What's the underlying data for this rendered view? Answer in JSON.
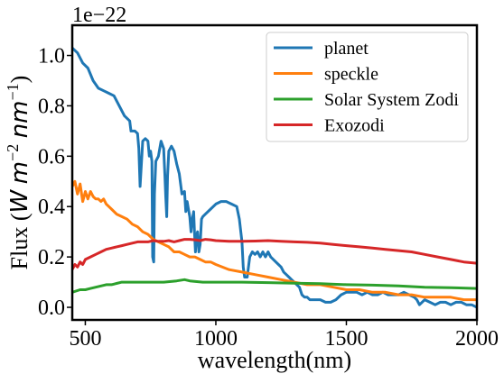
{
  "chart_data": {
    "type": "line",
    "title": "",
    "xlabel": "wavelength(nm)",
    "ylabel": "Flux (W m⁻² nm⁻¹)",
    "ylabel_parts": {
      "prefix": "Flux (",
      "W": "W",
      "m": "m",
      "m_exp": "−2",
      "nm": "nm",
      "nm_exp": "−1",
      "suffix": ")"
    },
    "y_offset_label": "1e−22",
    "xlim": [
      450,
      2000
    ],
    "ylim": [
      -0.05,
      1.12
    ],
    "x_ticks": [
      500,
      1000,
      1500,
      2000
    ],
    "x_tick_labels": [
      "500",
      "1000",
      "1500",
      "2000"
    ],
    "y_ticks": [
      0.0,
      0.2,
      0.4,
      0.6,
      0.8,
      1.0
    ],
    "y_tick_labels": [
      "0.0",
      "0.2",
      "0.4",
      "0.6",
      "0.8",
      "1.0"
    ],
    "grid": false,
    "legend_position": "top-right",
    "series": [
      {
        "name": "planet",
        "color": "#1f77b4",
        "x": [
          450,
          470,
          490,
          510,
          530,
          550,
          570,
          590,
          610,
          630,
          650,
          670,
          675,
          680,
          690,
          700,
          705,
          710,
          720,
          730,
          740,
          745,
          750,
          755,
          758,
          762,
          765,
          770,
          780,
          790,
          800,
          805,
          808,
          812,
          815,
          820,
          830,
          840,
          850,
          860,
          870,
          880,
          885,
          890,
          895,
          900,
          905,
          910,
          915,
          918,
          922,
          925,
          930,
          935,
          940,
          945,
          950,
          960,
          980,
          1000,
          1020,
          1040,
          1060,
          1080,
          1090,
          1100,
          1105,
          1110,
          1115,
          1120,
          1130,
          1140,
          1150,
          1160,
          1170,
          1180,
          1190,
          1200,
          1210,
          1220,
          1230,
          1240,
          1250,
          1260,
          1270,
          1280,
          1290,
          1300,
          1310,
          1320,
          1330,
          1340,
          1350,
          1360,
          1380,
          1400,
          1420,
          1440,
          1460,
          1480,
          1500,
          1520,
          1540,
          1560,
          1580,
          1600,
          1620,
          1640,
          1660,
          1680,
          1700,
          1720,
          1740,
          1760,
          1770,
          1780,
          1790,
          1800,
          1820,
          1840,
          1860,
          1880,
          1900,
          1920,
          1940,
          1960,
          1980,
          2000
        ],
        "y": [
          1.03,
          1.01,
          0.97,
          0.95,
          0.9,
          0.87,
          0.86,
          0.85,
          0.84,
          0.8,
          0.76,
          0.74,
          0.7,
          0.7,
          0.7,
          0.69,
          0.63,
          0.48,
          0.66,
          0.67,
          0.66,
          0.6,
          0.62,
          0.58,
          0.2,
          0.18,
          0.45,
          0.58,
          0.6,
          0.66,
          0.63,
          0.52,
          0.44,
          0.36,
          0.52,
          0.62,
          0.64,
          0.62,
          0.57,
          0.53,
          0.45,
          0.46,
          0.38,
          0.42,
          0.39,
          0.36,
          0.3,
          0.35,
          0.38,
          0.3,
          0.22,
          0.28,
          0.3,
          0.22,
          0.25,
          0.35,
          0.36,
          0.37,
          0.39,
          0.41,
          0.42,
          0.42,
          0.41,
          0.4,
          0.35,
          0.26,
          0.16,
          0.12,
          0.12,
          0.12,
          0.2,
          0.22,
          0.21,
          0.22,
          0.2,
          0.22,
          0.2,
          0.22,
          0.2,
          0.19,
          0.18,
          0.17,
          0.16,
          0.14,
          0.13,
          0.12,
          0.11,
          0.1,
          0.09,
          0.08,
          0.05,
          0.04,
          0.04,
          0.03,
          0.03,
          0.03,
          0.02,
          0.02,
          0.03,
          0.05,
          0.06,
          0.06,
          0.06,
          0.05,
          0.06,
          0.05,
          0.05,
          0.06,
          0.05,
          0.05,
          0.05,
          0.06,
          0.05,
          0.04,
          0.03,
          0.01,
          0.02,
          0.03,
          0.02,
          0.01,
          0.02,
          0.02,
          0.01,
          0.02,
          0.02,
          0.01,
          0.01,
          0.0
        ]
      },
      {
        "name": "speckle",
        "color": "#ff7f0e",
        "x": [
          450,
          460,
          470,
          480,
          490,
          500,
          510,
          520,
          530,
          540,
          550,
          560,
          570,
          580,
          590,
          600,
          620,
          640,
          660,
          680,
          700,
          720,
          740,
          760,
          780,
          800,
          820,
          840,
          860,
          880,
          900,
          920,
          940,
          960,
          980,
          1000,
          1050,
          1100,
          1150,
          1200,
          1250,
          1300,
          1350,
          1400,
          1450,
          1500,
          1550,
          1600,
          1650,
          1700,
          1750,
          1800,
          1850,
          1900,
          1950,
          2000
        ],
        "y": [
          0.48,
          0.5,
          0.45,
          0.49,
          0.42,
          0.46,
          0.43,
          0.46,
          0.44,
          0.43,
          0.43,
          0.42,
          0.43,
          0.41,
          0.4,
          0.39,
          0.37,
          0.36,
          0.35,
          0.33,
          0.32,
          0.3,
          0.29,
          0.27,
          0.26,
          0.25,
          0.24,
          0.22,
          0.22,
          0.21,
          0.2,
          0.2,
          0.19,
          0.18,
          0.18,
          0.17,
          0.15,
          0.14,
          0.13,
          0.12,
          0.11,
          0.1,
          0.09,
          0.09,
          0.08,
          0.07,
          0.07,
          0.06,
          0.06,
          0.05,
          0.05,
          0.04,
          0.04,
          0.04,
          0.03,
          0.03
        ]
      },
      {
        "name": "Solar System Zodi",
        "color": "#2ca02c",
        "x": [
          450,
          480,
          500,
          520,
          540,
          560,
          580,
          600,
          620,
          640,
          660,
          680,
          700,
          750,
          800,
          850,
          880,
          900,
          950,
          1000,
          1100,
          1200,
          1300,
          1400,
          1500,
          1600,
          1700,
          1800,
          1900,
          2000
        ],
        "y": [
          0.06,
          0.07,
          0.07,
          0.075,
          0.08,
          0.085,
          0.09,
          0.09,
          0.095,
          0.1,
          0.1,
          0.1,
          0.1,
          0.1,
          0.1,
          0.105,
          0.11,
          0.105,
          0.1,
          0.1,
          0.1,
          0.098,
          0.096,
          0.094,
          0.09,
          0.088,
          0.085,
          0.08,
          0.078,
          0.075
        ]
      },
      {
        "name": "Exozodi",
        "color": "#d62728",
        "x": [
          450,
          460,
          470,
          480,
          490,
          500,
          520,
          540,
          560,
          580,
          600,
          620,
          640,
          660,
          680,
          700,
          720,
          740,
          760,
          780,
          800,
          820,
          840,
          860,
          880,
          900,
          920,
          940,
          960,
          980,
          1000,
          1050,
          1100,
          1150,
          1200,
          1250,
          1300,
          1350,
          1400,
          1450,
          1500,
          1550,
          1600,
          1650,
          1700,
          1750,
          1800,
          1850,
          1900,
          1950,
          2000
        ],
        "y": [
          0.15,
          0.17,
          0.16,
          0.18,
          0.17,
          0.19,
          0.2,
          0.21,
          0.22,
          0.23,
          0.235,
          0.24,
          0.245,
          0.25,
          0.255,
          0.26,
          0.26,
          0.26,
          0.265,
          0.262,
          0.262,
          0.265,
          0.26,
          0.265,
          0.27,
          0.27,
          0.268,
          0.265,
          0.27,
          0.268,
          0.265,
          0.262,
          0.262,
          0.263,
          0.265,
          0.262,
          0.26,
          0.258,
          0.255,
          0.25,
          0.245,
          0.24,
          0.235,
          0.23,
          0.225,
          0.22,
          0.21,
          0.2,
          0.19,
          0.18,
          0.175
        ]
      }
    ]
  }
}
